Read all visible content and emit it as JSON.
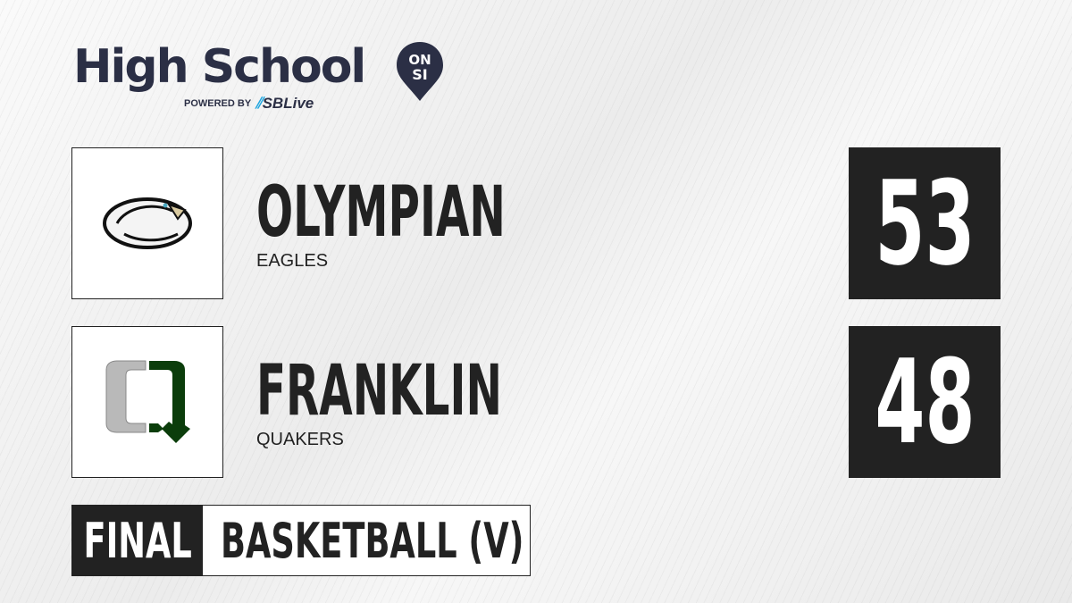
{
  "brand": {
    "title": "High School",
    "badge_top": "ON",
    "badge_bottom": "SI",
    "powered_by": "POWERED BY",
    "partner": "SBLive",
    "colors": {
      "navy": "#2b2f45",
      "partner_accent": "#22a7e0"
    }
  },
  "teams": [
    {
      "name": "OLYMPIAN",
      "mascot": "EAGLES",
      "score": "53",
      "logo_icon": "eagle-logo"
    },
    {
      "name": "FRANKLIN",
      "mascot": "QUAKERS",
      "score": "48",
      "logo_icon": "q-logo",
      "colors": {
        "gray": "#b9b9b9",
        "green": "#0b3d0b"
      }
    }
  ],
  "footer": {
    "status": "FINAL",
    "sport": "BASKETBALL (V)"
  }
}
